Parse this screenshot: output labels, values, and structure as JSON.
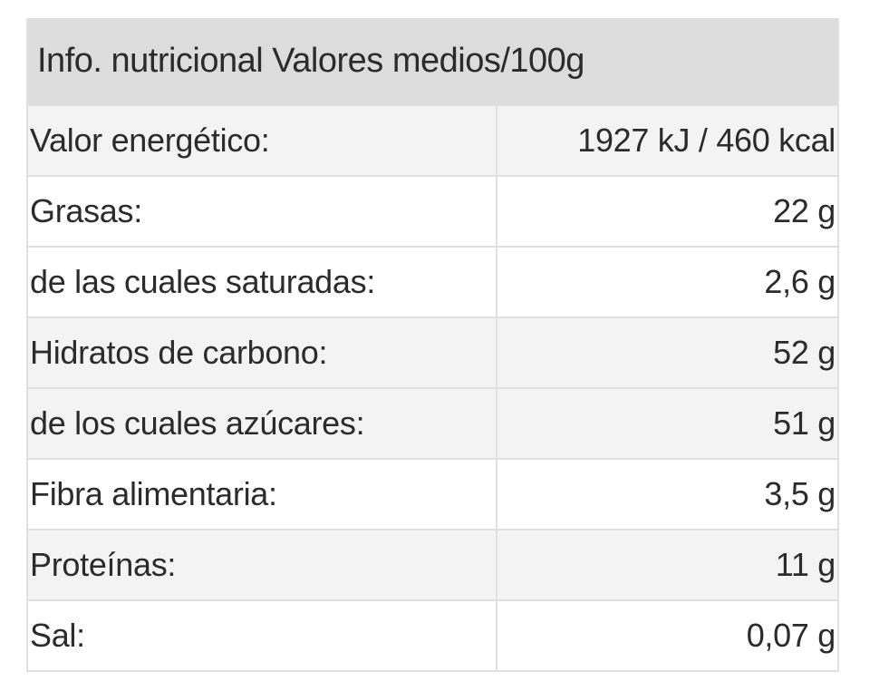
{
  "nutrition_table": {
    "header": "Info. nutricional Valores medios/100g",
    "rows": [
      {
        "label": "Valor energético:",
        "value": "1927 kJ / 460 kcal",
        "shade": "gray"
      },
      {
        "label": "Grasas:",
        "value": "22 g",
        "shade": "white"
      },
      {
        "label": "de las cuales saturadas:",
        "value": "2,6 g",
        "shade": "white"
      },
      {
        "label": "Hidratos de carbono:",
        "value": "52 g",
        "shade": "gray"
      },
      {
        "label": "de los cuales azúcares:",
        "value": "51 g",
        "shade": "gray"
      },
      {
        "label": "Fibra alimentaria:",
        "value": "3,5 g",
        "shade": "white"
      },
      {
        "label": "Proteínas:",
        "value": "11 g",
        "shade": "gray"
      },
      {
        "label": "Sal:",
        "value": "0,07 g",
        "shade": "white"
      }
    ]
  },
  "colors": {
    "header_bg": "#dcdcdc",
    "row_gray_bg": "#f3f3f3",
    "row_white_bg": "#ffffff",
    "border": "#e0e0e0",
    "text": "#2b2b2b"
  }
}
